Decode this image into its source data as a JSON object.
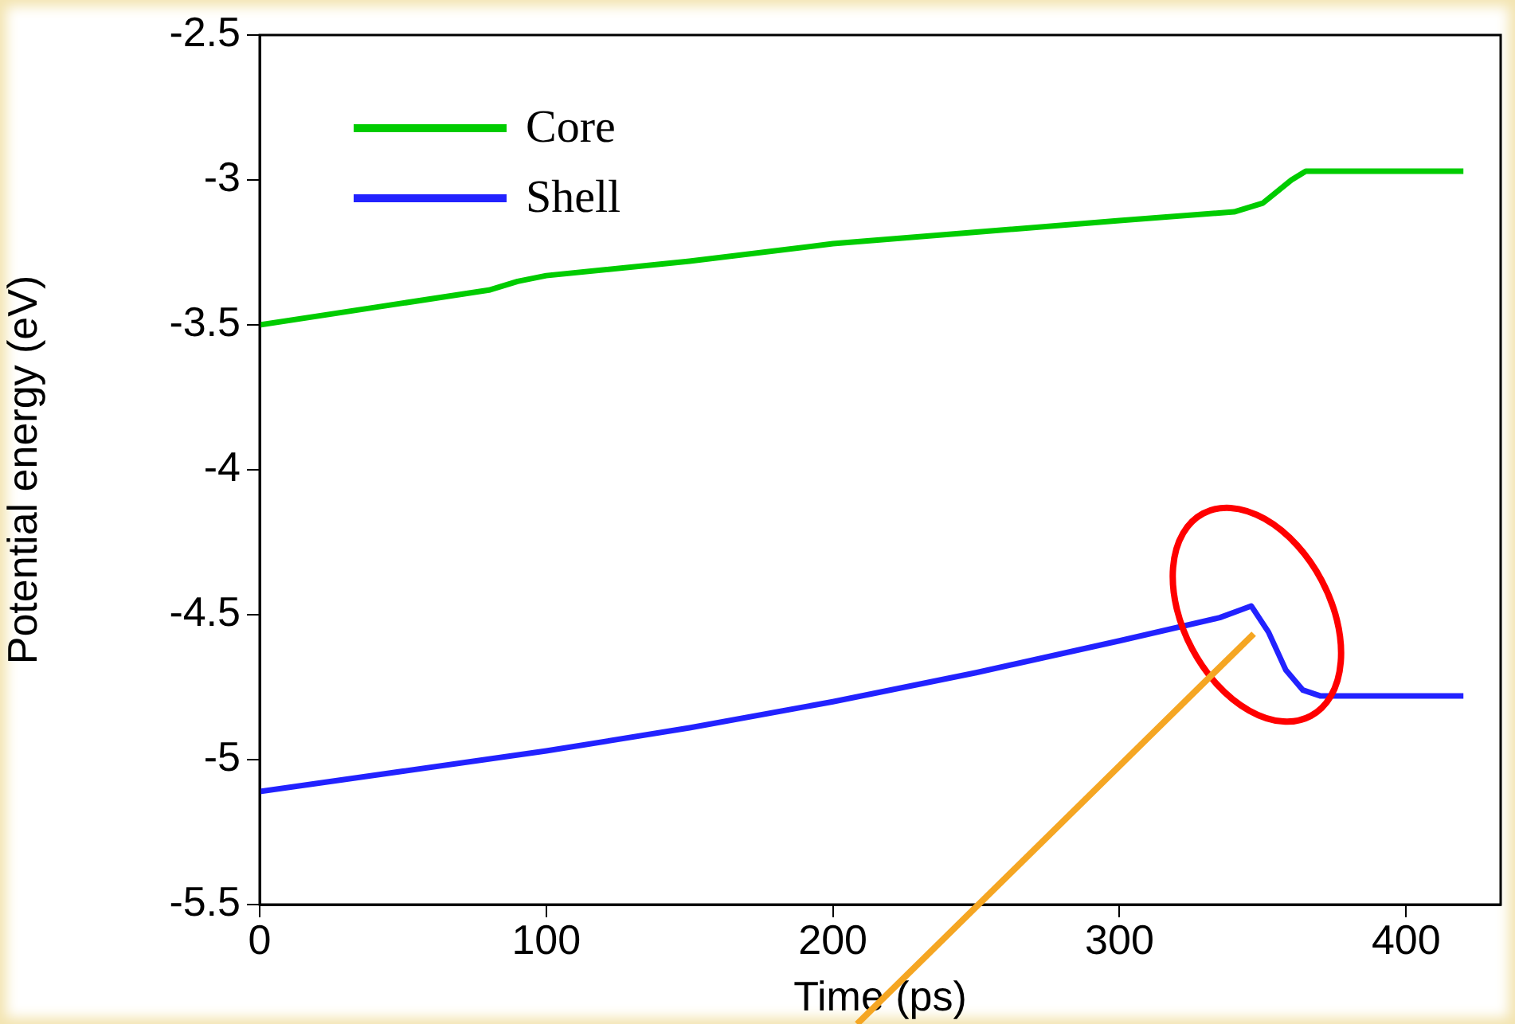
{
  "chart_data": {
    "type": "line",
    "xlabel": "Time (ps)",
    "ylabel": "Potential energy (eV)",
    "xlim": [
      0,
      433
    ],
    "xticks": [
      0,
      100,
      200,
      300,
      400
    ],
    "ylim": [
      -5.5,
      -2.5
    ],
    "yticks": [
      -5.5,
      -5,
      -4.5,
      -4,
      -3.5,
      -3,
      -2.5
    ],
    "legend": "top left",
    "grid": false,
    "marker": "none",
    "line_style": "solid",
    "series": [
      {
        "name": "Core",
        "color": "#00cc00",
        "x": [
          0,
          40,
          80,
          90,
          100,
          150,
          200,
          250,
          300,
          340,
          350,
          360,
          365,
          390,
          420
        ],
        "values": [
          -3.5,
          -3.44,
          -3.38,
          -3.35,
          -3.33,
          -3.28,
          -3.22,
          -3.18,
          -3.14,
          -3.11,
          -3.08,
          -3.0,
          -2.97,
          -2.97,
          -2.97
        ]
      },
      {
        "name": "Shell",
        "color": "#2222ff",
        "x": [
          0,
          50,
          100,
          150,
          200,
          250,
          300,
          335,
          346,
          352,
          358,
          364,
          370,
          390,
          420
        ],
        "values": [
          -5.11,
          -5.04,
          -4.97,
          -4.89,
          -4.8,
          -4.7,
          -4.59,
          -4.51,
          -4.47,
          -4.56,
          -4.69,
          -4.76,
          -4.78,
          -4.78,
          -4.78
        ]
      }
    ]
  }
}
